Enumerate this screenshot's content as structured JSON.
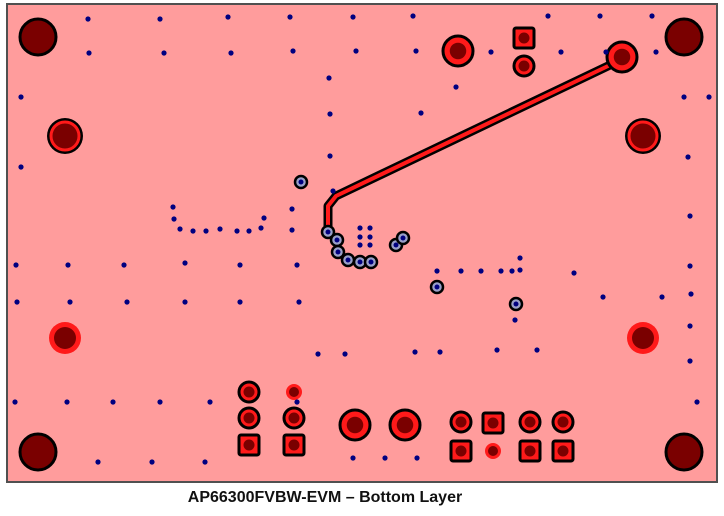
{
  "caption": "AP66300FVBW-EVM – Bottom Layer",
  "colors": {
    "board_fill": "#ff9c9c",
    "board_outline": "#505050",
    "copper_pad": "#ff1a1a",
    "hole": "#7a0000",
    "pad_outline": "#000000",
    "via": "#000080",
    "trace": "#ff1a1a"
  }
}
